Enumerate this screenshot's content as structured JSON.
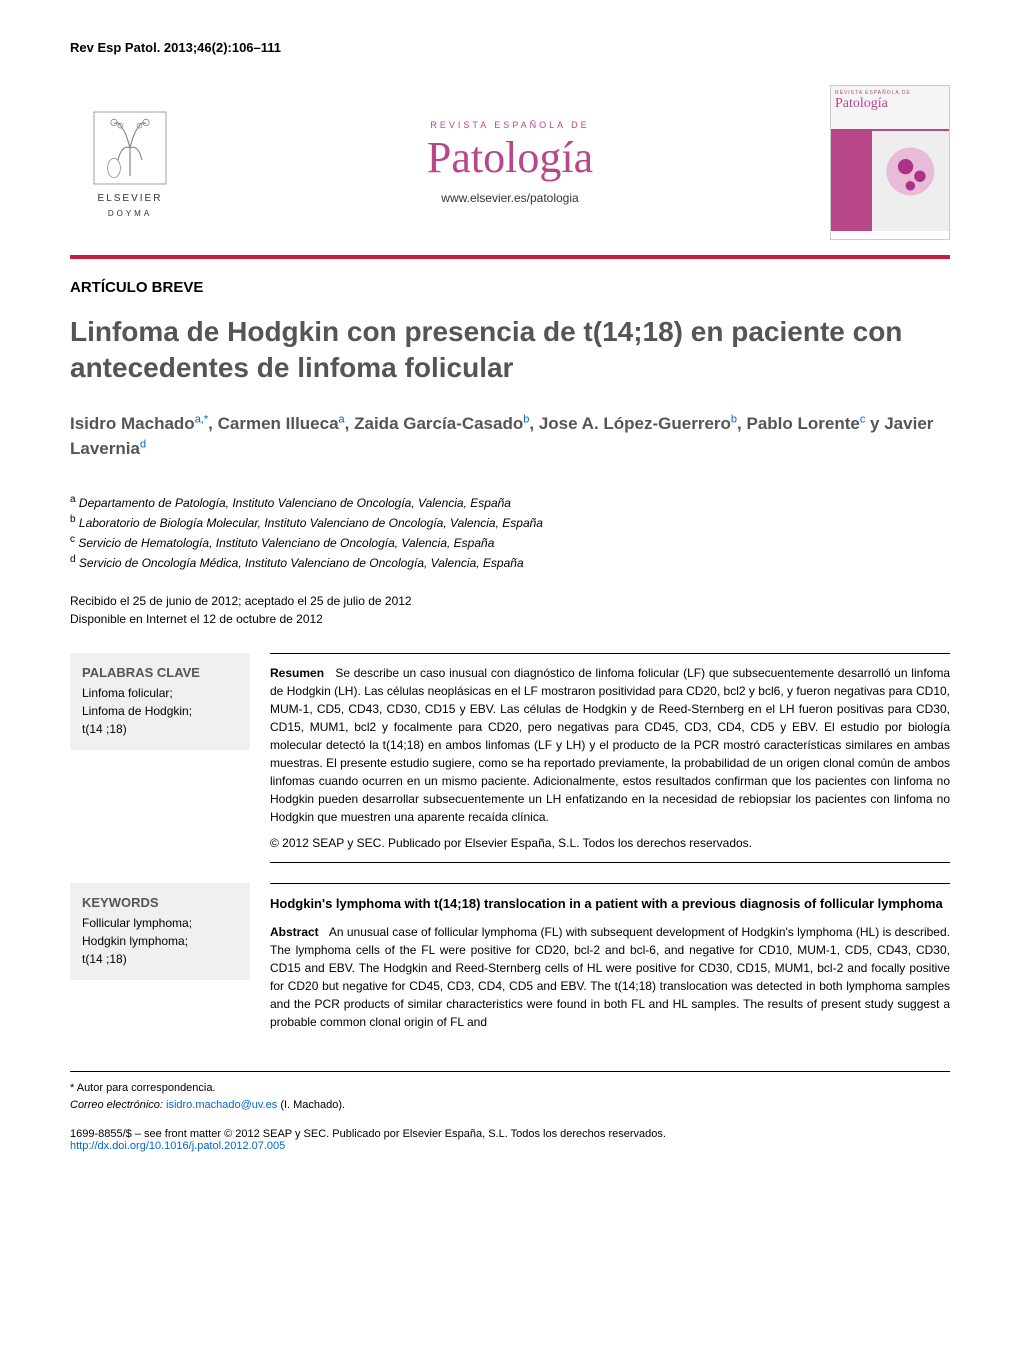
{
  "citation": "Rev Esp Patol. 2013;46(2):106–111",
  "publisher": {
    "name": "ELSEVIER",
    "subname": "DOYMA"
  },
  "journal": {
    "subtitle": "REVISTA ESPAÑOLA DE",
    "title": "Patología",
    "url": "www.elsevier.es/patologia"
  },
  "article_type": "ARTÍCULO BREVE",
  "title": "Linfoma de Hodgkin con presencia de t(14;18) en paciente con antecedentes de linfoma folicular",
  "authors_html": "Isidro Machado",
  "authors": [
    {
      "name": "Isidro Machado",
      "sup": "a,*"
    },
    {
      "name": "Carmen Illueca",
      "sup": "a"
    },
    {
      "name": "Zaida García-Casado",
      "sup": "b"
    },
    {
      "name": "Jose A. López-Guerrero",
      "sup": "b"
    },
    {
      "name": "Pablo Lorente",
      "sup": "c"
    },
    {
      "name": "Javier Lavernia",
      "sup": "d"
    }
  ],
  "affiliations": [
    {
      "sup": "a",
      "text": "Departamento de Patología, Instituto Valenciano de Oncología, Valencia, España"
    },
    {
      "sup": "b",
      "text": "Laboratorio de Biología Molecular, Instituto Valenciano de Oncología, Valencia, España"
    },
    {
      "sup": "c",
      "text": "Servicio de Hematología, Instituto Valenciano de Oncología, Valencia, España"
    },
    {
      "sup": "d",
      "text": "Servicio de Oncología Médica, Instituto Valenciano de Oncología, Valencia, España"
    }
  ],
  "dates": {
    "received_accepted": "Recibido el 25 de junio de 2012; aceptado el 25 de julio de 2012",
    "online": "Disponible en Internet el 12 de octubre de 2012"
  },
  "abstract_es": {
    "keywords_title": "PALABRAS CLAVE",
    "keywords": "Linfoma folicular;\nLinfoma de Hodgkin;\nt(14 ;18)",
    "label": "Resumen",
    "text": "Se describe un caso inusual con diagnóstico de linfoma folicular (LF) que subsecuentemente desarrolló un linfoma de Hodgkin (LH). Las células neoplásicas en el LF mostraron positividad para CD20, bcl2 y bcl6, y fueron negativas para CD10, MUM-1, CD5, CD43, CD30, CD15 y EBV. Las células de Hodgkin y de Reed-Sternberg en el LH fueron positivas para CD30, CD15, MUM1, bcl2 y focalmente para CD20, pero negativas para CD45, CD3, CD4, CD5 y EBV. El estudio por biología molecular detectó la t(14;18) en ambos linfomas (LF y LH) y el producto de la PCR mostró características similares en ambas muestras. El presente estudio sugiere, como se ha reportado previamente, la probabilidad de un origen clonal común de ambos linfomas cuando ocurren en un mismo paciente. Adicionalmente, estos resultados confirman que los pacientes con linfoma no Hodgkin pueden desarrollar subsecuentemente un LH enfatizando en la necesidad de rebiopsiar los pacientes con linfoma no Hodgkin que muestren una aparente recaída clínica.",
    "copyright": "© 2012 SEAP y SEC. Publicado por Elsevier España, S.L. Todos los derechos reservados."
  },
  "abstract_en": {
    "keywords_title": "KEYWORDS",
    "keywords": "Follicular lymphoma;\nHodgkin lymphoma;\nt(14 ;18)",
    "en_title": "Hodgkin's lymphoma with t(14;18) translocation in a patient with a previous diagnosis of follicular lymphoma",
    "label": "Abstract",
    "text": "An unusual case of follicular lymphoma (FL) with subsequent development of Hodgkin's lymphoma (HL) is described. The lymphoma cells of the FL were positive for CD20, bcl-2 and bcl-6, and negative for CD10, MUM-1, CD5, CD43, CD30, CD15 and EBV. The Hodgkin and Reed-Sternberg cells of HL were positive for CD30, CD15, MUM1, bcl-2 and focally positive for CD20 but negative for CD45, CD3, CD4, CD5 and EBV. The t(14;18) translocation was detected in both lymphoma samples and the PCR products of similar characteristics were found in both FL and HL samples. The results of present study suggest a probable common clonal origin of FL and"
  },
  "correspondence": {
    "marker": "* Autor para correspondencia.",
    "email_label": "Correo electrónico:",
    "email": "isidro.machado@uv.es",
    "email_owner": "(I. Machado)."
  },
  "footer": {
    "issn": "1699-8855/$ – see front matter © 2012 SEAP y SEC. Publicado por Elsevier España, S.L. Todos los derechos reservados.",
    "doi": "http://dx.doi.org/10.1016/j.patol.2012.07.005"
  },
  "colors": {
    "accent_pink": "#b8478a",
    "red_bar": "#c41e3a",
    "link_blue": "#0066cc",
    "title_gray": "#555555",
    "keyword_bg": "#f0f0f0"
  }
}
